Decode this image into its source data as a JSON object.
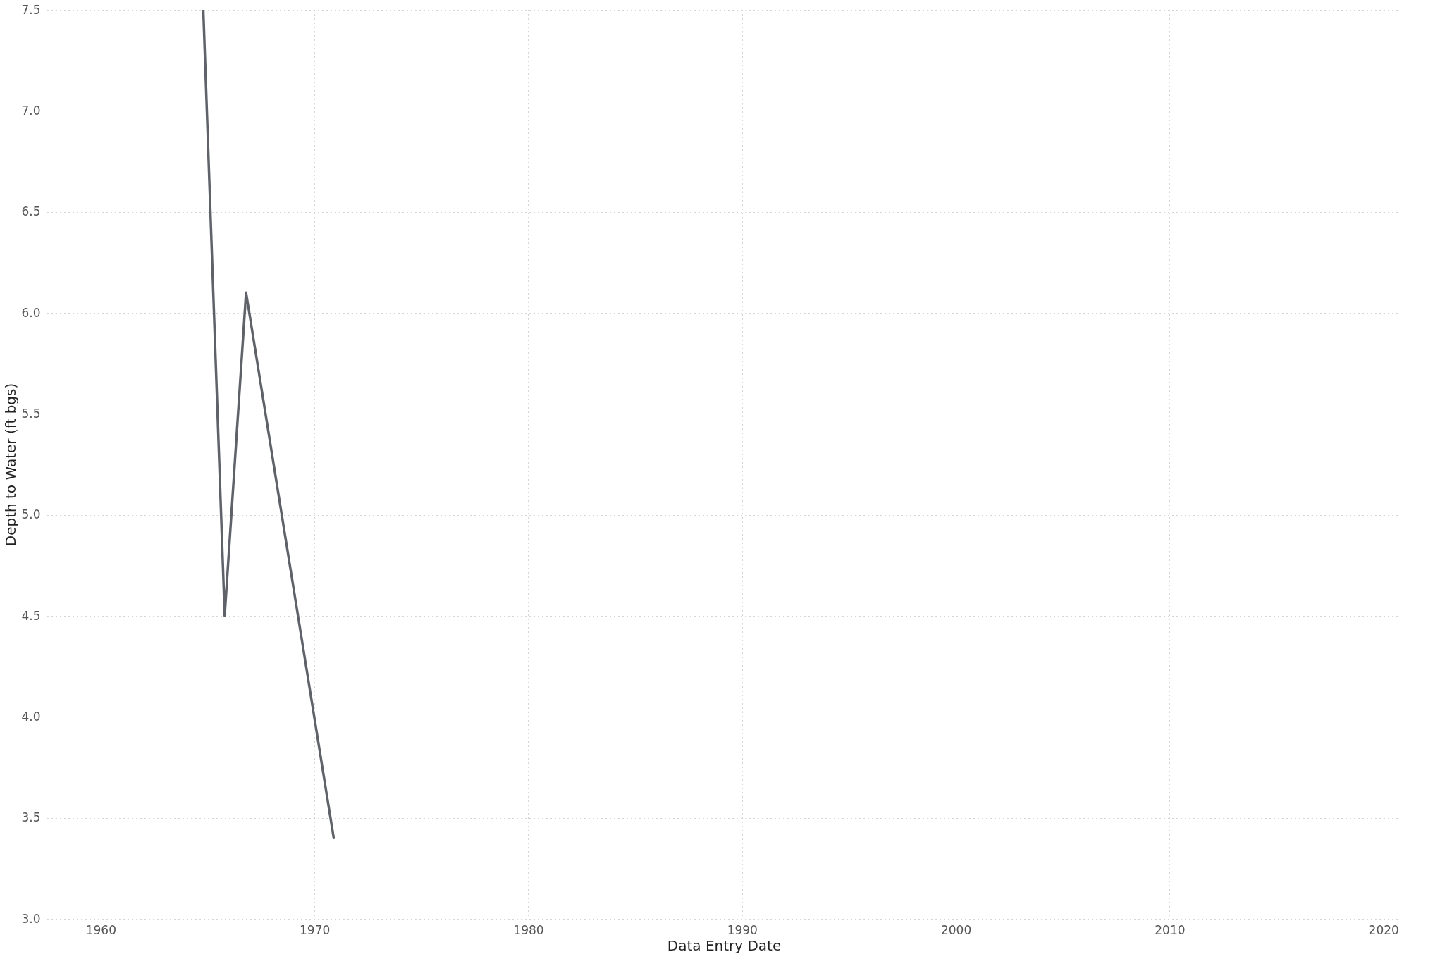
{
  "chart_data": {
    "type": "line",
    "xlabel": "Data Entry Date",
    "ylabel": "Depth to Water (ft bgs)",
    "x": [
      1964.8,
      1965.8,
      1966.8,
      1970.9
    ],
    "series": [
      {
        "color": "#5f6369",
        "values": [
          7.5,
          4.5,
          6.1,
          3.4
        ]
      }
    ],
    "xlim": [
      1957.5,
      2020.8
    ],
    "xticks": [
      1960,
      1970,
      1980,
      1990,
      2000,
      2010,
      2020
    ],
    "ylim": [
      3.0,
      7.5
    ],
    "yticks": [
      {
        "value": 3,
        "label": "3.0"
      },
      3.5,
      {
        "value": 4,
        "label": "4.0"
      },
      4.5,
      {
        "value": 5,
        "label": "5.0"
      },
      5.5,
      {
        "value": 6,
        "label": "6.0"
      },
      6.5,
      {
        "value": 7,
        "label": "7.0"
      },
      7.5
    ],
    "grid": true,
    "marker": "none",
    "line_style": "solid"
  }
}
